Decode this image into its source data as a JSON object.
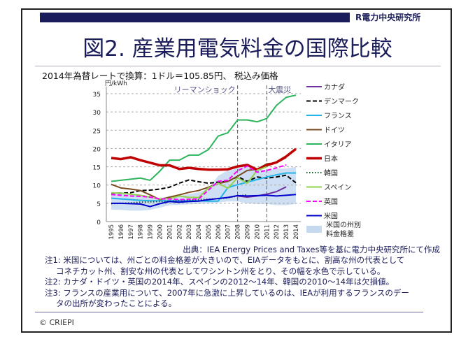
{
  "header": {
    "logo": "R電力中央研究所",
    "title": "図2. 産業用電気料金の国際比較",
    "subtitle": "2014年為替レートで換算：1ドル＝105.85円、 税込み価格"
  },
  "chart_data": {
    "type": "line",
    "ylabel": "円/kWh",
    "ylim": [
      0,
      35
    ],
    "yticks": [
      0,
      5,
      10,
      15,
      20,
      25,
      30,
      35
    ],
    "grid": "horizontal dashed",
    "legend": "right",
    "x": [
      1995,
      1996,
      1997,
      1998,
      1999,
      2000,
      2001,
      2002,
      2003,
      2004,
      2005,
      2006,
      2007,
      2008,
      2009,
      2010,
      2011,
      2012,
      2013,
      2014
    ],
    "annotations": [
      {
        "x": 2008,
        "label": "リーマンショック"
      },
      {
        "x": 2011,
        "label": "大震災"
      }
    ],
    "series": [
      {
        "name": "カナダ",
        "color": "#7030a0",
        "style": "solid",
        "values": [
          null,
          null,
          null,
          null,
          null,
          null,
          null,
          null,
          null,
          null,
          null,
          null,
          null,
          7.0,
          6.7,
          7.0,
          7.5,
          8.2,
          9.5,
          null
        ]
      },
      {
        "name": "デンマーク",
        "color": "#000000",
        "style": "dashed",
        "values": [
          7.8,
          7.8,
          7.9,
          8.5,
          8.6,
          8.9,
          9.4,
          10.5,
          11.4,
          10.9,
          10.5,
          10.8,
          11.0,
          12.3,
          11.0,
          12.2,
          11.9,
          12.2,
          12.7,
          10.6
        ]
      },
      {
        "name": "フランス",
        "color": "#22b4e8",
        "style": "solid",
        "values": [
          6.4,
          6.2,
          6.0,
          5.8,
          5.7,
          5.7,
          5.7,
          5.7,
          5.7,
          5.7,
          5.6,
          5.6,
          9.3,
          10.1,
          10.8,
          11.5,
          12.2,
          12.8,
          13.3,
          13.3
        ]
      },
      {
        "name": "ドイツ",
        "color": "#7b4a1e",
        "style": "solid",
        "values": [
          10.2,
          9.2,
          8.9,
          8.5,
          7.3,
          6.0,
          6.7,
          7.3,
          8.0,
          8.5,
          9.4,
          10.4,
          11.0,
          12.4,
          14.0,
          14.3,
          15.8,
          16.1,
          17.5,
          null
        ]
      },
      {
        "name": "イタリア",
        "color": "#2db55d",
        "style": "solid",
        "values": [
          11.0,
          11.3,
          11.6,
          11.9,
          11.3,
          13.8,
          16.8,
          16.8,
          18.2,
          18.2,
          19.7,
          23.4,
          24.3,
          27.8,
          27.8,
          27.3,
          28.2,
          31.8,
          34.0,
          34.6
        ]
      },
      {
        "name": "日本",
        "color": "#c00000",
        "style": "thick",
        "values": [
          17.4,
          17.1,
          17.6,
          16.8,
          16.1,
          15.4,
          15.4,
          14.4,
          14.7,
          14.4,
          14.2,
          14.2,
          14.3,
          15.1,
          15.5,
          14.2,
          15.4,
          16.2,
          17.8,
          19.9
        ]
      },
      {
        "name": "韓国",
        "color": "#1a5a2a",
        "style": "dotted",
        "values": [
          4.9,
          5.0,
          5.1,
          5.3,
          5.4,
          5.5,
          5.6,
          5.8,
          5.9,
          6.0,
          6.1,
          6.3,
          6.5,
          7.0,
          7.3,
          null,
          null,
          null,
          null,
          null
        ]
      },
      {
        "name": "スペイン",
        "color": "#92d050",
        "style": "solid",
        "values": [
          7.9,
          7.8,
          7.5,
          7.2,
          6.7,
          6.2,
          6.3,
          7.0,
          6.6,
          6.6,
          9.2,
          10.5,
          9.1,
          12.0,
          10.5,
          14.0,
          15.0,
          null,
          null,
          null
        ]
      },
      {
        "name": "英国",
        "color": "#ff00ff",
        "style": "dashed",
        "values": [
          7.4,
          7.2,
          7.0,
          6.9,
          6.7,
          6.2,
          6.2,
          6.0,
          6.1,
          6.2,
          8.6,
          11.0,
          11.3,
          13.9,
          15.2,
          13.5,
          14.0,
          14.7,
          15.5,
          null
        ]
      },
      {
        "name": "米国",
        "color": "#0000cc",
        "style": "solid",
        "values": [
          5.0,
          5.0,
          4.9,
          4.8,
          4.1,
          4.9,
          5.5,
          5.3,
          5.5,
          5.6,
          6.0,
          6.3,
          6.6,
          7.1,
          7.0,
          7.1,
          7.2,
          7.0,
          7.2,
          7.4
        ]
      }
    ],
    "band": {
      "name": "米国の州別\n料金格差",
      "color": "#c6d9f1",
      "low": [
        3.3,
        3.2,
        3.0,
        3.0,
        3.2,
        3.8,
        4.5,
        4.6,
        4.7,
        4.8,
        5.0,
        5.2,
        5.5,
        5.5,
        5.0,
        4.8,
        4.8,
        4.5,
        4.5,
        4.8
      ],
      "high": [
        7.5,
        7.6,
        7.5,
        7.3,
        6.8,
        6.5,
        6.8,
        7.0,
        7.5,
        8.0,
        9.0,
        12.5,
        14.0,
        14.8,
        15.0,
        14.5,
        14.0,
        14.5,
        14.5,
        15.0
      ]
    }
  },
  "footer": {
    "source": "出典：IEA Energy Prices and Taxes等を基に電力中央研究所にて作成",
    "note1a": "注1: 米国については、州ごとの料金格差が大きいので、EIAデータをもとに、割高な州の代表として",
    "note1b": "コネチカット州、割安な州の代表としてワシントン州をとり、その幅を水色で示している。",
    "note2": "注2: カナダ・ドイツ・英国の2014年、スペインの2012～14年、韓国の2010～14年は欠損値。",
    "note3a": "注3: フランスの産業用について、2007年に急激に上昇しているのは、IEAが利用するフランスのデー",
    "note3b": "タの出所が変わったことによる。",
    "copyright": "© CRIEPI"
  }
}
